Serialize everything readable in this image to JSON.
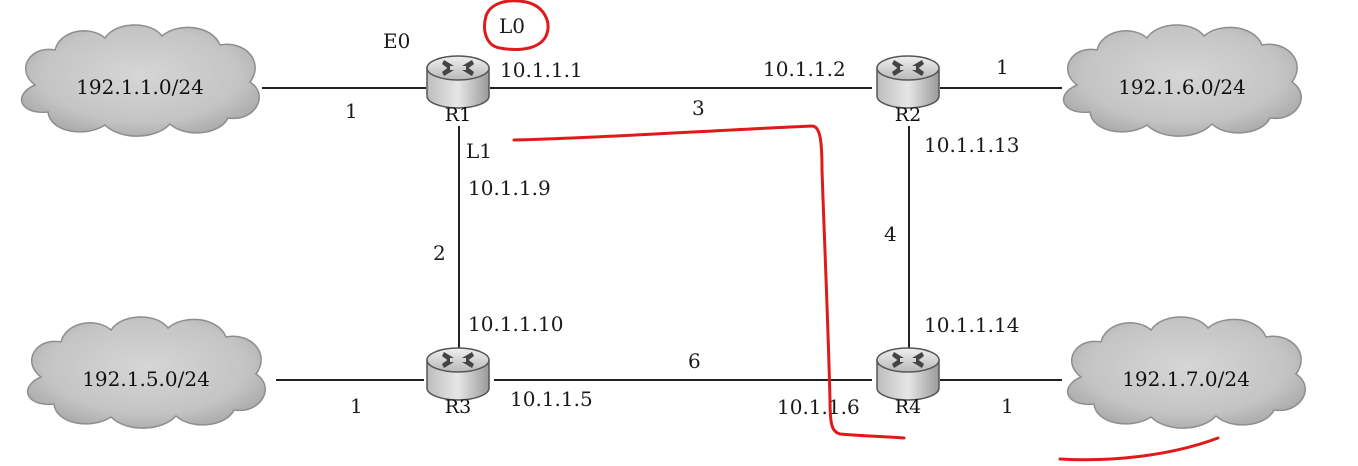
{
  "networks": {
    "top_left": "192.1.1.0/24",
    "top_right": "192.1.6.0/24",
    "bottom_left": "192.1.5.0/24",
    "bottom_right": "192.1.7.0/24"
  },
  "routers": {
    "r1": "R1",
    "r2": "R2",
    "r3": "R3",
    "r4": "R4"
  },
  "interfaces": {
    "e0": "E0",
    "l0": "L0",
    "l1": "L1"
  },
  "addresses": {
    "r1_r2_r1": "10.1.1.1",
    "r1_r2_r2": "10.1.1.2",
    "r2_r4_r2": "10.1.1.13",
    "r1_r3_r1": "10.1.1.9",
    "r1_r3_r3": "10.1.1.10",
    "r2_r4_r4": "10.1.1.14",
    "r3_r4_r3": "10.1.1.5",
    "r3_r4_r4": "10.1.1.6"
  },
  "costs": {
    "net1_r1": "1",
    "r1_r2": "3",
    "r2_net6": "1",
    "r1_r3": "2",
    "r2_r4": "4",
    "net5_r3": "1",
    "r3_r4": "6",
    "r4_net7": "1"
  },
  "annotation_color": "#e01a1a"
}
